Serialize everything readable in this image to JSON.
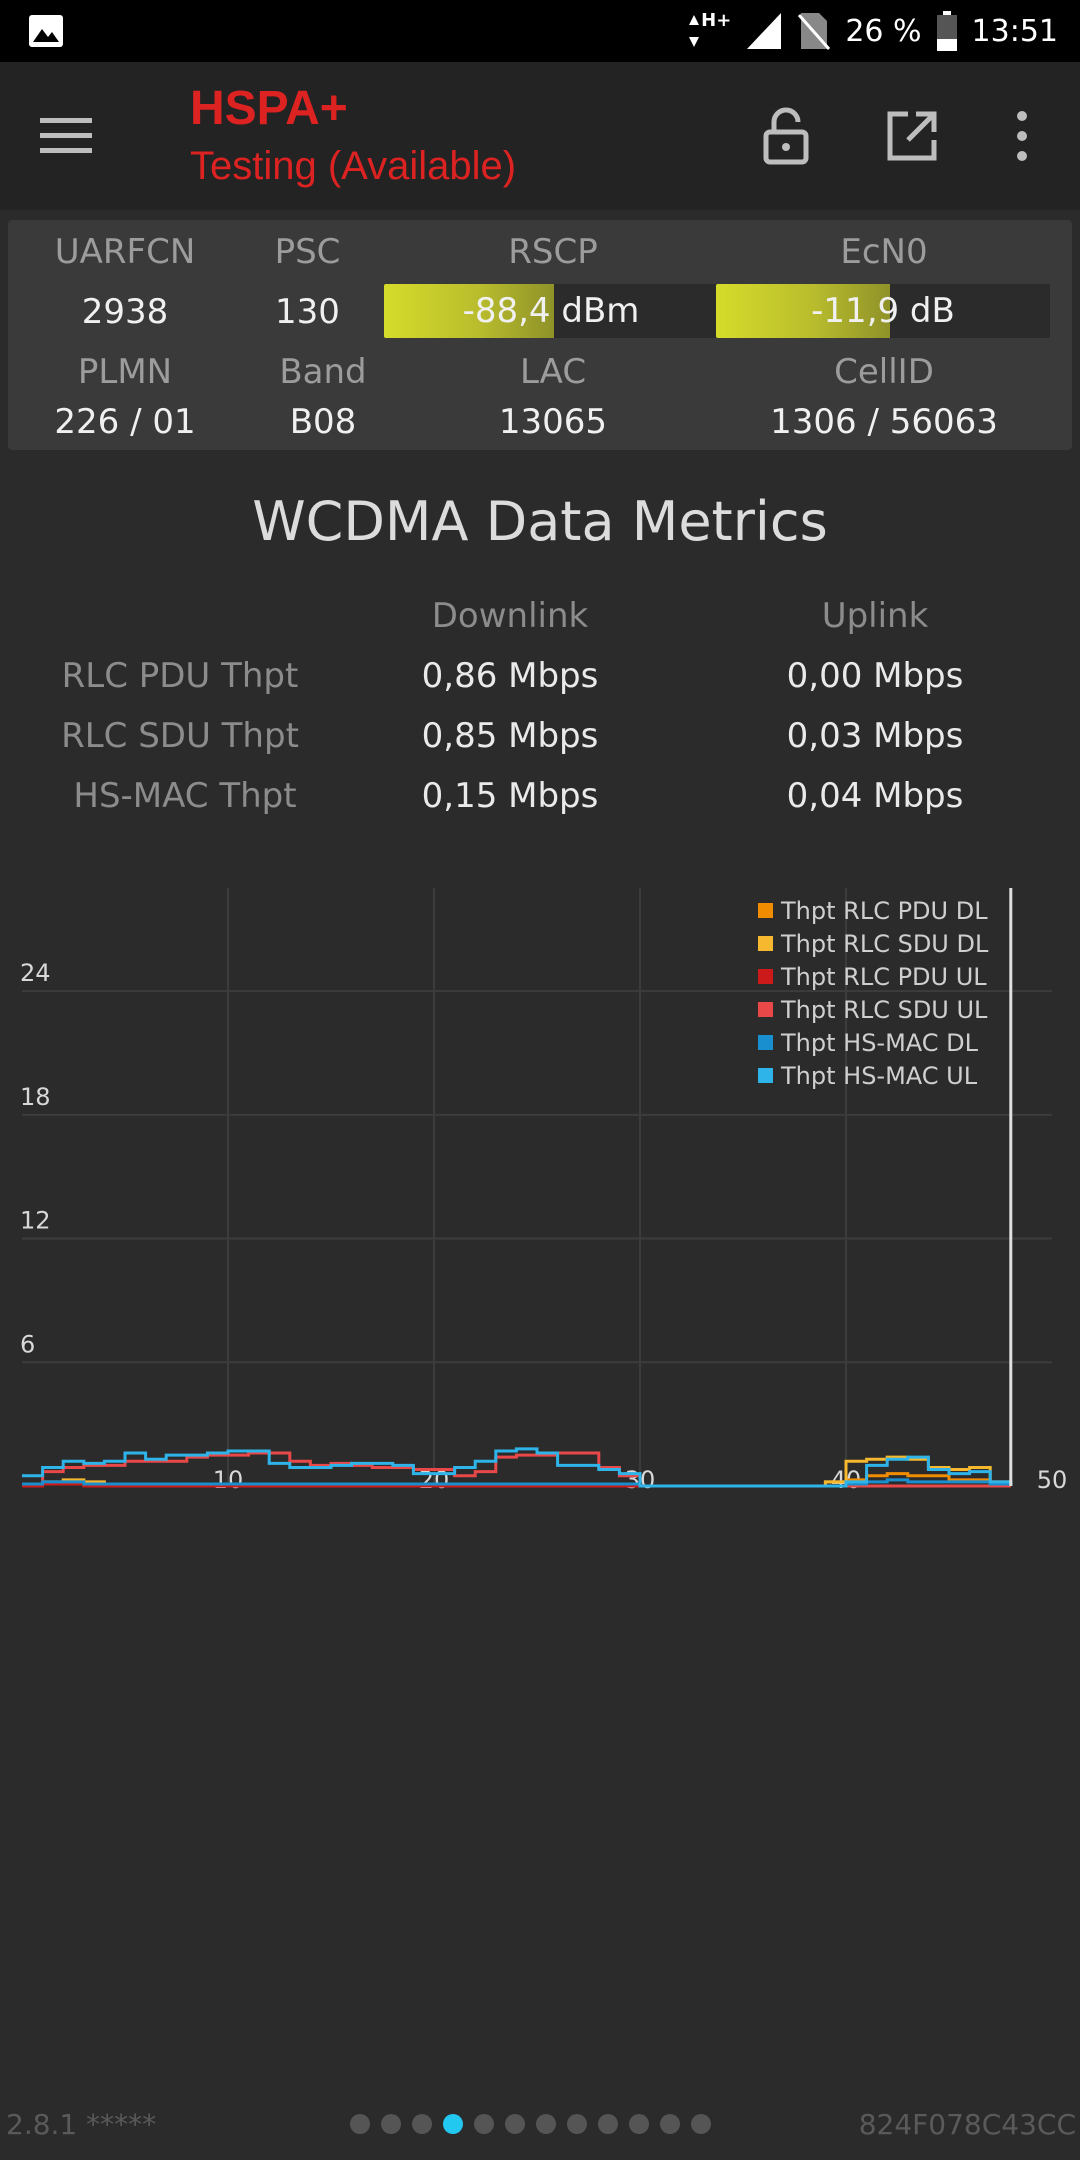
{
  "status_bar": {
    "network": "H+",
    "battery": "26 %",
    "time": "13:51"
  },
  "app_bar": {
    "title": "HSPA+",
    "subtitle": "Testing (Available)",
    "icons": [
      "menu-icon",
      "lock-icon",
      "open-external-icon",
      "more-vertical-icon"
    ]
  },
  "cell_info": {
    "uarfcn": {
      "label": "UARFCN",
      "value": "2938"
    },
    "psc": {
      "label": "PSC",
      "value": "130"
    },
    "rscp": {
      "label": "RSCP",
      "value": "-88,4 dBm",
      "level": 0.51
    },
    "ecn0": {
      "label": "EcN0",
      "value": "-11,9 dB",
      "level": 0.52
    },
    "plmn": {
      "label": "PLMN",
      "value": "226 / 01"
    },
    "band": {
      "label": "Band",
      "value": "B08"
    },
    "lac": {
      "label": "LAC",
      "value": "13065"
    },
    "cellid": {
      "label": "CellID",
      "value": "1306 / 56063"
    }
  },
  "metrics": {
    "title": "WCDMA Data Metrics",
    "col_downlink": "Downlink",
    "col_uplink": "Uplink",
    "rows": [
      {
        "label": "RLC PDU Thpt",
        "downlink": "0,86 Mbps",
        "uplink": "0,00 Mbps"
      },
      {
        "label": "RLC SDU Thpt",
        "downlink": "0,85 Mbps",
        "uplink": "0,03 Mbps"
      },
      {
        "label": "HS-MAC Thpt",
        "downlink": "0,15 Mbps",
        "uplink": "0,04 Mbps"
      }
    ]
  },
  "chart_data": {
    "type": "line",
    "xlim": [
      0,
      50
    ],
    "ylim": [
      0,
      29
    ],
    "x_ticks": [
      "10",
      "20",
      "30",
      "40",
      "50"
    ],
    "y_ticks": [
      "6",
      "12",
      "18",
      "24"
    ],
    "grid": true,
    "legend_position": "top-right",
    "cursor_x": 48,
    "series": [
      {
        "name": "Thpt RLC PDU DL",
        "color": "#f08c00",
        "x": [
          0,
          1,
          2,
          3,
          4,
          5,
          6,
          7,
          8,
          9,
          10,
          11,
          12,
          13,
          14,
          15,
          16,
          17,
          18,
          19,
          20,
          21,
          22,
          23,
          24,
          25,
          26,
          27,
          28,
          29,
          30,
          31,
          32,
          33,
          34,
          35,
          36,
          37,
          38,
          39,
          40,
          41,
          42,
          43,
          44,
          45,
          46,
          47,
          48
        ],
        "values": [
          0.1,
          0.1,
          0.2,
          0.1,
          0,
          0,
          0,
          0,
          0,
          0,
          0,
          0,
          0,
          0,
          0,
          0,
          0,
          0,
          0,
          0,
          0,
          0,
          0,
          0,
          0,
          0,
          0,
          0,
          0,
          0,
          0,
          0,
          0,
          0,
          0,
          0,
          0,
          0,
          0,
          0.2,
          0.3,
          0.5,
          0.6,
          0.5,
          0.5,
          0.3,
          0.3,
          0.1,
          0
        ]
      },
      {
        "name": "Thpt RLC SDU DL",
        "color": "#f5b82e",
        "x": [
          0,
          1,
          2,
          3,
          4,
          5,
          6,
          7,
          8,
          9,
          10,
          11,
          12,
          13,
          14,
          15,
          16,
          17,
          18,
          19,
          20,
          21,
          22,
          23,
          24,
          25,
          26,
          27,
          28,
          29,
          30,
          31,
          32,
          33,
          34,
          35,
          36,
          37,
          38,
          39,
          40,
          41,
          42,
          43,
          44,
          45,
          46,
          47,
          48
        ],
        "values": [
          0.1,
          0.2,
          0.3,
          0.2,
          0,
          0,
          0,
          0,
          0,
          0,
          0,
          0,
          0,
          0,
          0,
          0,
          0,
          0,
          0,
          0,
          0,
          0,
          0,
          0,
          0,
          0,
          0,
          0,
          0,
          0,
          0,
          0,
          0,
          0,
          0,
          0,
          0,
          0,
          0,
          0.2,
          1.2,
          1.3,
          1.4,
          1.3,
          0.9,
          0.8,
          0.9,
          0.2,
          0
        ]
      },
      {
        "name": "Thpt RLC PDU UL",
        "color": "#cc1a1a",
        "x": [
          0,
          1,
          2,
          3,
          4,
          5,
          6,
          7,
          8,
          9,
          10,
          11,
          12,
          13,
          14,
          15,
          16,
          17,
          18,
          19,
          20,
          21,
          22,
          23,
          24,
          25,
          26,
          27,
          28,
          29,
          30,
          31,
          32,
          33,
          34,
          35,
          36,
          37,
          38,
          39,
          40,
          41,
          42,
          43,
          44,
          45,
          46,
          47,
          48
        ],
        "values": [
          0,
          0.1,
          0.1,
          0,
          0,
          0,
          0,
          0,
          0,
          0,
          0,
          0,
          0,
          0,
          0,
          0,
          0,
          0,
          0,
          0,
          0,
          0,
          0,
          0,
          0,
          0,
          0,
          0,
          0,
          0,
          0,
          0,
          0,
          0,
          0,
          0,
          0,
          0,
          0,
          0,
          0,
          0,
          0,
          0,
          0,
          0,
          0,
          0,
          0
        ]
      },
      {
        "name": "Thpt RLC SDU UL",
        "color": "#e84848",
        "x": [
          0,
          1,
          2,
          3,
          4,
          5,
          6,
          7,
          8,
          9,
          10,
          11,
          12,
          13,
          14,
          15,
          16,
          17,
          18,
          19,
          20,
          21,
          22,
          23,
          24,
          25,
          26,
          27,
          28,
          29,
          30,
          31,
          32,
          33,
          34,
          35,
          36,
          37,
          38,
          39,
          40,
          41,
          42,
          43,
          44,
          45,
          46,
          47,
          48
        ],
        "values": [
          0.1,
          0.7,
          0.9,
          1.0,
          1.0,
          1.2,
          1.2,
          1.2,
          1.4,
          1.5,
          1.5,
          1.6,
          1.6,
          1.2,
          1.0,
          1.1,
          1.0,
          0.9,
          0.9,
          0.8,
          0.8,
          0.5,
          0.7,
          1.4,
          1.5,
          1.5,
          1.6,
          1.6,
          0.9,
          0.5,
          0,
          0,
          0,
          0,
          0,
          0,
          0,
          0,
          0,
          0,
          0,
          0,
          0,
          0,
          0,
          0,
          0,
          0,
          0
        ]
      },
      {
        "name": "Thpt HS-MAC DL",
        "color": "#1a8fd0",
        "x": [
          0,
          1,
          2,
          3,
          4,
          5,
          6,
          7,
          8,
          9,
          10,
          11,
          12,
          13,
          14,
          15,
          16,
          17,
          18,
          19,
          20,
          21,
          22,
          23,
          24,
          25,
          26,
          27,
          28,
          29,
          30,
          31,
          32,
          33,
          34,
          35,
          36,
          37,
          38,
          39,
          40,
          41,
          42,
          43,
          44,
          45,
          46,
          47,
          48
        ],
        "values": [
          0.1,
          0.2,
          0.2,
          0.1,
          0.1,
          0.1,
          0.1,
          0.1,
          0.1,
          0.1,
          0.1,
          0.1,
          0.1,
          0.1,
          0.1,
          0.1,
          0.1,
          0.1,
          0.1,
          0.1,
          0.1,
          0.1,
          0.1,
          0.1,
          0.1,
          0.1,
          0.1,
          0.1,
          0.1,
          0.1,
          0,
          0,
          0,
          0,
          0,
          0,
          0,
          0,
          0,
          0,
          0.1,
          0.2,
          0.3,
          0.2,
          0.2,
          0.2,
          0.2,
          0.1,
          0
        ]
      },
      {
        "name": "Thpt HS-MAC UL",
        "color": "#2eb4e8",
        "x": [
          0,
          1,
          2,
          3,
          4,
          5,
          6,
          7,
          8,
          9,
          10,
          11,
          12,
          13,
          14,
          15,
          16,
          17,
          18,
          19,
          20,
          21,
          22,
          23,
          24,
          25,
          26,
          27,
          28,
          29,
          30,
          31,
          32,
          33,
          34,
          35,
          36,
          37,
          38,
          39,
          40,
          41,
          42,
          43,
          44,
          45,
          46,
          47,
          48
        ],
        "values": [
          0.5,
          0.9,
          1.2,
          1.1,
          1.2,
          1.6,
          1.3,
          1.5,
          1.5,
          1.6,
          1.7,
          1.7,
          1.1,
          0.9,
          0.9,
          1.0,
          1.1,
          1.1,
          1.0,
          0.6,
          0.6,
          0.9,
          1.2,
          1.7,
          1.8,
          1.6,
          1.0,
          1.0,
          0.8,
          0.6,
          0,
          0,
          0,
          0,
          0,
          0,
          0,
          0,
          0,
          0,
          0.2,
          1.0,
          1.3,
          1.4,
          0.8,
          0.6,
          0.7,
          0.2,
          0
        ]
      }
    ]
  },
  "footer": {
    "version": "2.8.1 *****",
    "device_id": "824F078C43CC",
    "page_count": 12,
    "active_page": 4
  }
}
